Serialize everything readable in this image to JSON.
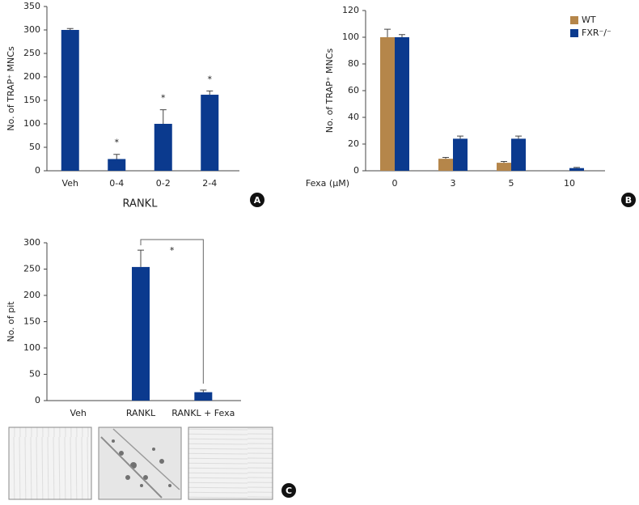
{
  "chart_data": [
    {
      "type": "bar",
      "label": "A",
      "ylabel": "No. of TRAP⁺ MNCs",
      "xlabel": "RANKL",
      "categories": [
        "Veh",
        "0-4",
        "0-2",
        "2-4"
      ],
      "values": [
        300,
        25,
        100,
        162
      ],
      "errors": [
        3,
        10,
        30,
        8
      ],
      "significance": [
        null,
        "*",
        "*",
        "*"
      ],
      "color": "#0b3a8e",
      "ylim": [
        0,
        350
      ],
      "yticks": [
        0,
        50,
        100,
        150,
        200,
        250,
        300,
        350
      ]
    },
    {
      "type": "grouped_bar",
      "label": "B",
      "ylabel": "No. of TRAP⁺ MNCs",
      "xlabel": "Fexa (μM)",
      "categories": [
        "0",
        "3",
        "5",
        "10"
      ],
      "series": [
        {
          "name": "WT",
          "color": "#b5864a",
          "values": [
            100,
            9,
            6,
            0
          ],
          "errors": [
            6,
            1,
            1,
            null
          ]
        },
        {
          "name": "FXR⁻/⁻",
          "color": "#0b3a8e",
          "values": [
            100,
            24,
            24,
            2
          ],
          "errors": [
            2,
            2,
            2,
            0.5
          ]
        }
      ],
      "legend": "upper right",
      "ylim": [
        0,
        120
      ],
      "yticks": [
        0,
        20,
        40,
        60,
        80,
        100,
        120
      ]
    },
    {
      "type": "bar",
      "label": "C",
      "ylabel": "No. of pit",
      "categories": [
        "Veh",
        "RANKL",
        "RANKL + Fexa"
      ],
      "values": [
        0,
        254,
        16
      ],
      "errors": [
        null,
        32,
        4
      ],
      "annotation": "*",
      "color": "#0b3a8e",
      "ylim": [
        0,
        300
      ],
      "yticks": [
        0,
        50,
        100,
        150,
        200,
        250,
        300
      ]
    }
  ]
}
